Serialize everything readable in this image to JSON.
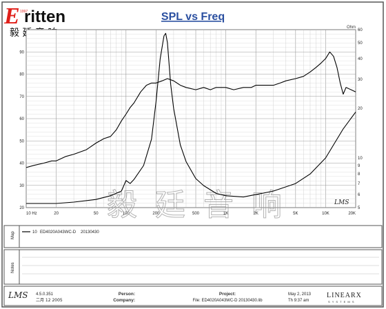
{
  "brand": {
    "logo_text": "ritten",
    "logo_initial": "E",
    "logo_sub": "1997",
    "chinese_name": "毅 廷 音 响",
    "watermark": "毅 廷 音 响",
    "lms_mark": "LMS"
  },
  "chart_data": {
    "type": "line",
    "title": "SPL vs Freq",
    "xscale": "log",
    "xlim": [
      10,
      20000
    ],
    "ylim_left": [
      20,
      100
    ],
    "right_axis_unit": "Ohm",
    "right_axis_scale": "log",
    "right_axis_range": [
      5,
      60
    ],
    "x_tick_labels": [
      "10 Hz",
      "20",
      "50",
      "100",
      "200",
      "500",
      "1K",
      "2K",
      "5K",
      "10K",
      "20K"
    ],
    "x_tick_values": [
      10,
      20,
      50,
      100,
      200,
      500,
      1000,
      2000,
      5000,
      10000,
      20000
    ],
    "y_left_ticks": [
      20,
      30,
      40,
      50,
      60,
      70,
      80,
      90
    ],
    "y_right_ticks": [
      5,
      6,
      7,
      8,
      9,
      10,
      20,
      30,
      40,
      50,
      60
    ],
    "grid": true,
    "series": [
      {
        "axis": "left",
        "color": "#000000",
        "x": [
          10,
          12,
          15,
          18,
          20,
          25,
          30,
          40,
          50,
          60,
          70,
          80,
          90,
          100,
          110,
          120,
          140,
          160,
          180,
          200,
          230,
          260,
          300,
          350,
          400,
          500,
          600,
          700,
          800,
          900,
          1000,
          1200,
          1500,
          1800,
          2000,
          2500,
          3000,
          3500,
          4000,
          5000,
          6000,
          7000,
          8000,
          9000,
          10000,
          11000,
          12000,
          13000,
          14000,
          15000,
          16000,
          18000,
          20000
        ],
        "y": [
          38,
          39,
          40,
          41,
          41,
          43,
          44,
          46,
          49,
          51,
          52,
          55,
          59,
          62,
          65,
          67,
          72,
          75,
          76,
          76,
          77,
          78,
          77,
          75,
          74,
          73,
          74,
          73,
          74,
          74,
          74,
          73,
          74,
          74,
          75,
          75,
          75,
          76,
          77,
          78,
          79,
          81,
          83,
          85,
          87,
          90,
          88,
          83,
          76,
          71,
          74,
          73,
          72
        ]
      },
      {
        "axis": "right",
        "color": "#000000",
        "x": [
          10,
          20,
          30,
          50,
          70,
          90,
          100,
          110,
          120,
          150,
          180,
          200,
          220,
          240,
          250,
          260,
          280,
          300,
          350,
          400,
          500,
          600,
          800,
          1000,
          1500,
          2000,
          3000,
          5000,
          7000,
          10000,
          15000,
          20000
        ],
        "y": [
          5.3,
          5.3,
          5.4,
          5.6,
          5.9,
          6.3,
          7.3,
          7.0,
          7.4,
          9.0,
          13,
          22,
          40,
          55,
          57,
          50,
          28,
          20,
          12,
          9.5,
          7.5,
          6.8,
          6.1,
          5.9,
          5.8,
          6.0,
          6.3,
          7.0,
          8.0,
          10,
          15,
          19
        ]
      }
    ]
  },
  "map_panel": {
    "side_label": "Map",
    "entry_id": "10",
    "entry_name": "ED4020A043WC-D",
    "entry_date": "20130430"
  },
  "notes_panel": {
    "side_label": "Notes"
  },
  "footer": {
    "logo": "LMS",
    "version": "4.5.0.351",
    "version_date": "二月 12 2005",
    "person_label": "Person:",
    "company_label": "Company:",
    "project_label": "Project:",
    "file_text": "File: ED4020A043WC-D  20130430.lib",
    "date": "May  2, 2013",
    "time": "Th   9:37 am",
    "brand": "LINEARX",
    "brand_sub": "S Y S T E M S"
  }
}
